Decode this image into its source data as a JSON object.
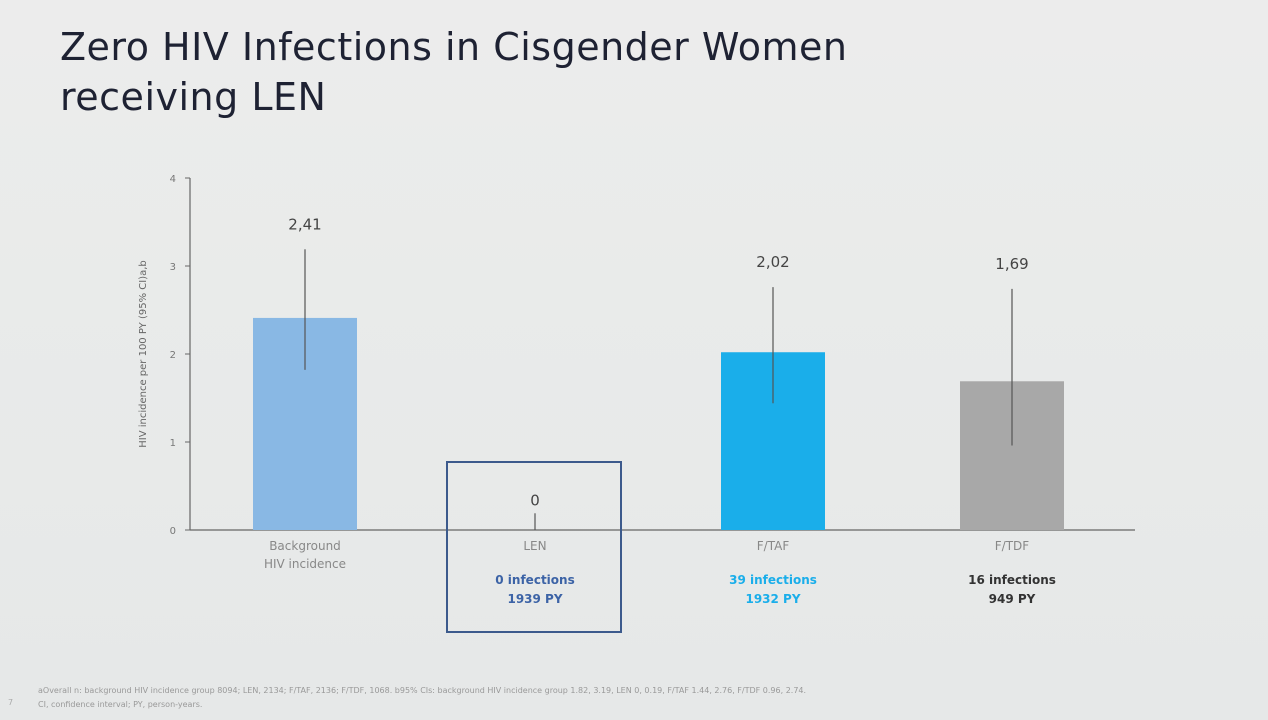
{
  "title_line1": "Zero HIV Infections in Cisgender Women",
  "title_line2": "receiving LEN",
  "chart_data": {
    "type": "bar",
    "title": "Zero HIV Infections in Cisgender Women receiving LEN",
    "xlabel": "",
    "ylabel": "HIV incidence per 100 PY (95% CI)a,b",
    "ylim": [
      0,
      4
    ],
    "yticks": [
      "0",
      "1",
      "2",
      "3",
      "4"
    ],
    "grid": false,
    "categories": [
      "Background HIV incidence",
      "LEN",
      "F/TAF",
      "F/TDF"
    ],
    "category_lines": [
      [
        "Background",
        "HIV incidence"
      ],
      [
        "LEN"
      ],
      [
        "F/TAF"
      ],
      [
        "F/TDF"
      ]
    ],
    "values": [
      2.41,
      0,
      2.02,
      1.69
    ],
    "value_labels": [
      "2,41",
      "0",
      "2,02",
      "1,69"
    ],
    "ci": [
      [
        1.82,
        3.19
      ],
      [
        0,
        0.19
      ],
      [
        1.44,
        2.76
      ],
      [
        0.96,
        2.74
      ]
    ],
    "infections": [
      "",
      "0 infections",
      "39 infections",
      "16 infections"
    ],
    "person_years": [
      "",
      "1939 PY",
      "1932 PY",
      "949 PY"
    ],
    "colors": [
      "#89b8e4",
      "#3c5a8c",
      "#1aaeea",
      "#a8a8a8"
    ],
    "sub_colors": [
      "#333333",
      "#3c63a6",
      "#1aaeea",
      "#333333"
    ],
    "highlight": "LEN"
  },
  "footnote_line1": "aOverall n: background HIV incidence group 8094; LEN, 2134; F/TAF, 2136; F/TDF, 1068. b95% CIs: background HIV incidence group 1.82, 3.19, LEN 0, 0.19, F/TAF 1.44, 2.76, F/TDF 0.96, 2.74.",
  "footnote_line2": "CI, confidence interval; PY, person-years.",
  "page_number": "7"
}
